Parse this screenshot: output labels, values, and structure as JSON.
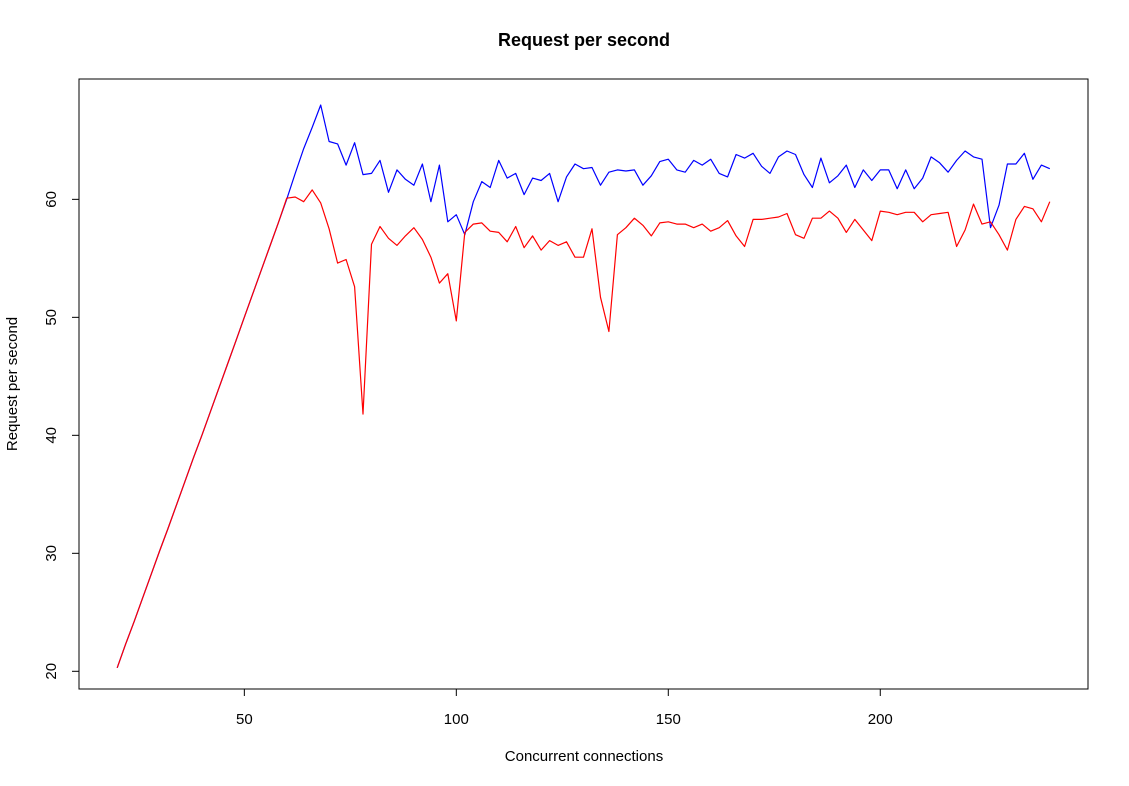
{
  "chart_data": {
    "type": "line",
    "title": "Request per second",
    "xlabel": "Concurrent connections",
    "ylabel": "Request per second",
    "xlim": [
      11,
      249
    ],
    "ylim": [
      18.5,
      70.2
    ],
    "xticks": [
      50,
      100,
      150,
      200
    ],
    "yticks": [
      20,
      30,
      40,
      50,
      60
    ],
    "grid": false,
    "legend": "none",
    "series": [
      {
        "color": "#0000ff",
        "x": [
          20,
          22,
          24,
          26,
          28,
          30,
          32,
          34,
          36,
          38,
          40,
          42,
          44,
          46,
          48,
          50,
          52,
          54,
          56,
          58,
          60,
          62,
          64,
          66,
          68,
          70,
          72,
          74,
          76,
          78,
          80,
          82,
          84,
          86,
          88,
          90,
          92,
          94,
          96,
          98,
          100,
          102,
          104,
          106,
          108,
          110,
          112,
          114,
          116,
          118,
          120,
          122,
          124,
          126,
          128,
          130,
          132,
          134,
          136,
          138,
          140,
          142,
          144,
          146,
          148,
          150,
          152,
          154,
          156,
          158,
          160,
          162,
          164,
          166,
          168,
          170,
          172,
          174,
          176,
          178,
          180,
          182,
          184,
          186,
          188,
          190,
          192,
          194,
          196,
          198,
          200,
          202,
          204,
          206,
          208,
          210,
          212,
          214,
          216,
          218,
          220,
          222,
          224,
          226,
          228,
          230,
          232,
          234,
          236,
          238,
          240
        ],
        "values": [
          20.3,
          22.3,
          24.2,
          26.2,
          28.2,
          30.2,
          32.1,
          34.1,
          36.1,
          38.1,
          40,
          42,
          44,
          46,
          48,
          50,
          52,
          54,
          56,
          58,
          60,
          62.2,
          64.3,
          66.1,
          68,
          64.9,
          64.7,
          62.9,
          64.8,
          62.1,
          62.2,
          63.3,
          60.6,
          62.5,
          61.7,
          61.2,
          63,
          59.8,
          62.9,
          58.1,
          58.7,
          57,
          59.8,
          61.5,
          61,
          63.3,
          61.8,
          62.2,
          60.4,
          61.8,
          61.6,
          62.2,
          59.8,
          61.9,
          63,
          62.6,
          62.7,
          61.2,
          62.3,
          62.5,
          62.4,
          62.5,
          61.2,
          62,
          63.2,
          63.4,
          62.5,
          62.3,
          63.3,
          62.9,
          63.4,
          62.2,
          61.9,
          63.8,
          63.5,
          63.9,
          62.8,
          62.2,
          63.6,
          64.1,
          63.8,
          62.1,
          61,
          63.5,
          61.4,
          62,
          62.9,
          61,
          62.5,
          61.6,
          62.5,
          62.5,
          60.9,
          62.5,
          60.9,
          61.8,
          63.6,
          63.1,
          62.3,
          63.3,
          64.1,
          63.6,
          63.4,
          57.6,
          59.5,
          63,
          63,
          63.9,
          61.7,
          62.9,
          62.6
        ]
      },
      {
        "color": "#ff0000",
        "x": [
          20,
          22,
          24,
          26,
          28,
          30,
          32,
          34,
          36,
          38,
          40,
          42,
          44,
          46,
          48,
          50,
          52,
          54,
          56,
          58,
          60,
          62,
          64,
          66,
          68,
          70,
          72,
          74,
          76,
          78,
          80,
          82,
          84,
          86,
          88,
          90,
          92,
          94,
          96,
          98,
          100,
          102,
          104,
          106,
          108,
          110,
          112,
          114,
          116,
          118,
          120,
          122,
          124,
          126,
          128,
          130,
          132,
          134,
          136,
          138,
          140,
          142,
          144,
          146,
          148,
          150,
          152,
          154,
          156,
          158,
          160,
          162,
          164,
          166,
          168,
          170,
          172,
          174,
          176,
          178,
          180,
          182,
          184,
          186,
          188,
          190,
          192,
          194,
          196,
          198,
          200,
          202,
          204,
          206,
          208,
          210,
          212,
          214,
          216,
          218,
          220,
          222,
          224,
          226,
          228,
          230,
          232,
          234,
          236,
          238,
          240
        ],
        "values": [
          20.3,
          22.3,
          24.2,
          26.2,
          28.2,
          30.2,
          32.1,
          34.1,
          36.1,
          38.1,
          40,
          42,
          44,
          46,
          48,
          50,
          52,
          54,
          56,
          58,
          60.1,
          60.2,
          59.8,
          60.8,
          59.7,
          57.5,
          54.6,
          54.9,
          52.6,
          41.8,
          56.2,
          57.7,
          56.7,
          56.1,
          56.9,
          57.6,
          56.6,
          55.1,
          52.9,
          53.7,
          49.7,
          57.2,
          57.9,
          58,
          57.3,
          57.2,
          56.4,
          57.7,
          55.9,
          56.9,
          55.7,
          56.5,
          56.1,
          56.4,
          55.1,
          55.1,
          57.5,
          51.7,
          48.8,
          57,
          57.6,
          58.4,
          57.8,
          56.9,
          58,
          58.1,
          57.9,
          57.9,
          57.6,
          57.9,
          57.3,
          57.6,
          58.2,
          56.9,
          56,
          58.3,
          58.3,
          58.4,
          58.5,
          58.8,
          57,
          56.7,
          58.4,
          58.4,
          59,
          58.4,
          57.2,
          58.3,
          57.4,
          56.5,
          59,
          58.9,
          58.7,
          58.9,
          58.9,
          58.1,
          58.7,
          58.8,
          58.9,
          56,
          57.4,
          59.6,
          57.9,
          58.1,
          57,
          55.7,
          58.3,
          59.4,
          59.2,
          58.1,
          59.8
        ]
      }
    ]
  }
}
